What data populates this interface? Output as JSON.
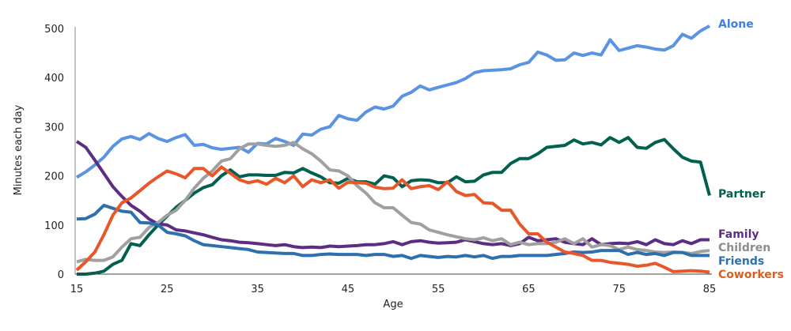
{
  "chart_data": {
    "type": "line",
    "xlabel": "Age",
    "ylabel": "Minutes each day",
    "xlim": [
      15,
      85
    ],
    "ylim": [
      0,
      500
    ],
    "xticks": [
      "15",
      "25",
      "35",
      "45",
      "55",
      "65",
      "75",
      "85"
    ],
    "yticks": [
      "0",
      "100",
      "200",
      "300",
      "400",
      "500"
    ],
    "grid": false,
    "legend": "direct labels at right end of lines",
    "x_start": 15,
    "x_step": 1,
    "series": [
      {
        "name": "Alone",
        "color": "#5B93E3",
        "label_color": "#3F7FE0",
        "values": [
          197,
          208,
          222,
          238,
          260,
          275,
          280,
          274,
          286,
          276,
          270,
          278,
          284,
          262,
          264,
          257,
          254,
          256,
          258,
          248,
          266,
          265,
          276,
          270,
          262,
          285,
          283,
          295,
          300,
          323,
          316,
          313,
          330,
          340,
          336,
          342,
          362,
          370,
          383,
          375,
          380,
          385,
          390,
          398,
          410,
          414,
          415,
          416,
          418,
          426,
          431,
          452,
          446,
          435,
          436,
          450,
          445,
          450,
          446,
          477,
          455,
          460,
          465,
          462,
          458,
          456,
          465,
          488,
          480,
          495,
          505
        ]
      },
      {
        "name": "Partner",
        "color": "#00614F",
        "label_color": "#00614F",
        "values": [
          0,
          0,
          2,
          6,
          20,
          28,
          62,
          58,
          80,
          100,
          118,
          136,
          150,
          165,
          176,
          182,
          200,
          212,
          198,
          202,
          202,
          201,
          201,
          207,
          206,
          215,
          206,
          198,
          186,
          185,
          195,
          188,
          188,
          183,
          200,
          196,
          178,
          190,
          192,
          191,
          186,
          186,
          198,
          188,
          189,
          202,
          207,
          207,
          225,
          235,
          235,
          245,
          258,
          260,
          262,
          273,
          265,
          268,
          263,
          278,
          268,
          278,
          258,
          256,
          268,
          274,
          255,
          238,
          230,
          228,
          160
        ]
      },
      {
        "name": "Family",
        "color": "#5C2D82",
        "label_color": "#5C2D82",
        "values": [
          270,
          258,
          232,
          205,
          178,
          158,
          140,
          128,
          112,
          102,
          100,
          90,
          88,
          84,
          80,
          75,
          70,
          68,
          65,
          64,
          62,
          60,
          58,
          60,
          56,
          54,
          55,
          54,
          57,
          56,
          57,
          58,
          60,
          60,
          62,
          66,
          60,
          66,
          68,
          65,
          63,
          64,
          65,
          70,
          66,
          62,
          60,
          62,
          58,
          62,
          75,
          68,
          70,
          72,
          65,
          62,
          60,
          72,
          60,
          62,
          63,
          62,
          66,
          60,
          70,
          62,
          60,
          68,
          62,
          70,
          70
        ]
      },
      {
        "name": "Children",
        "color": "#A0A0A0",
        "label_color": "#8C8C8C",
        "values": [
          25,
          30,
          28,
          28,
          35,
          55,
          72,
          75,
          95,
          105,
          120,
          130,
          150,
          175,
          195,
          210,
          230,
          235,
          255,
          265,
          265,
          262,
          260,
          262,
          268,
          255,
          245,
          230,
          212,
          210,
          200,
          180,
          165,
          145,
          135,
          135,
          120,
          105,
          102,
          90,
          85,
          80,
          76,
          72,
          70,
          74,
          68,
          72,
          60,
          65,
          60,
          62,
          62,
          65,
          72,
          62,
          72,
          55,
          60,
          58,
          50,
          55,
          50,
          48,
          45,
          44,
          45,
          44,
          42,
          46,
          48
        ]
      },
      {
        "name": "Friends",
        "color": "#2E6FAD",
        "label_color": "#2E6FAD",
        "values": [
          112,
          113,
          122,
          140,
          134,
          128,
          126,
          105,
          104,
          100,
          85,
          82,
          78,
          68,
          60,
          58,
          56,
          54,
          52,
          50,
          45,
          44,
          43,
          42,
          42,
          38,
          38,
          40,
          41,
          40,
          40,
          40,
          38,
          40,
          40,
          36,
          38,
          32,
          38,
          36,
          34,
          36,
          35,
          38,
          35,
          38,
          32,
          36,
          36,
          38,
          38,
          38,
          38,
          40,
          42,
          45,
          44,
          45,
          48,
          48,
          48,
          40,
          44,
          40,
          42,
          38,
          44,
          44,
          38,
          38,
          38
        ]
      },
      {
        "name": "Coworkers",
        "color": "#E8572A",
        "label_color": "#D8601E",
        "values": [
          8,
          25,
          45,
          80,
          120,
          145,
          155,
          170,
          185,
          198,
          210,
          204,
          196,
          215,
          215,
          200,
          218,
          205,
          192,
          186,
          190,
          183,
          195,
          186,
          200,
          178,
          192,
          186,
          192,
          175,
          187,
          186,
          185,
          177,
          174,
          175,
          192,
          174,
          178,
          180,
          172,
          188,
          168,
          160,
          162,
          145,
          144,
          130,
          130,
          102,
          82,
          82,
          65,
          55,
          45,
          42,
          38,
          28,
          28,
          24,
          22,
          20,
          16,
          18,
          22,
          14,
          5,
          6,
          7,
          6,
          4
        ]
      }
    ]
  }
}
